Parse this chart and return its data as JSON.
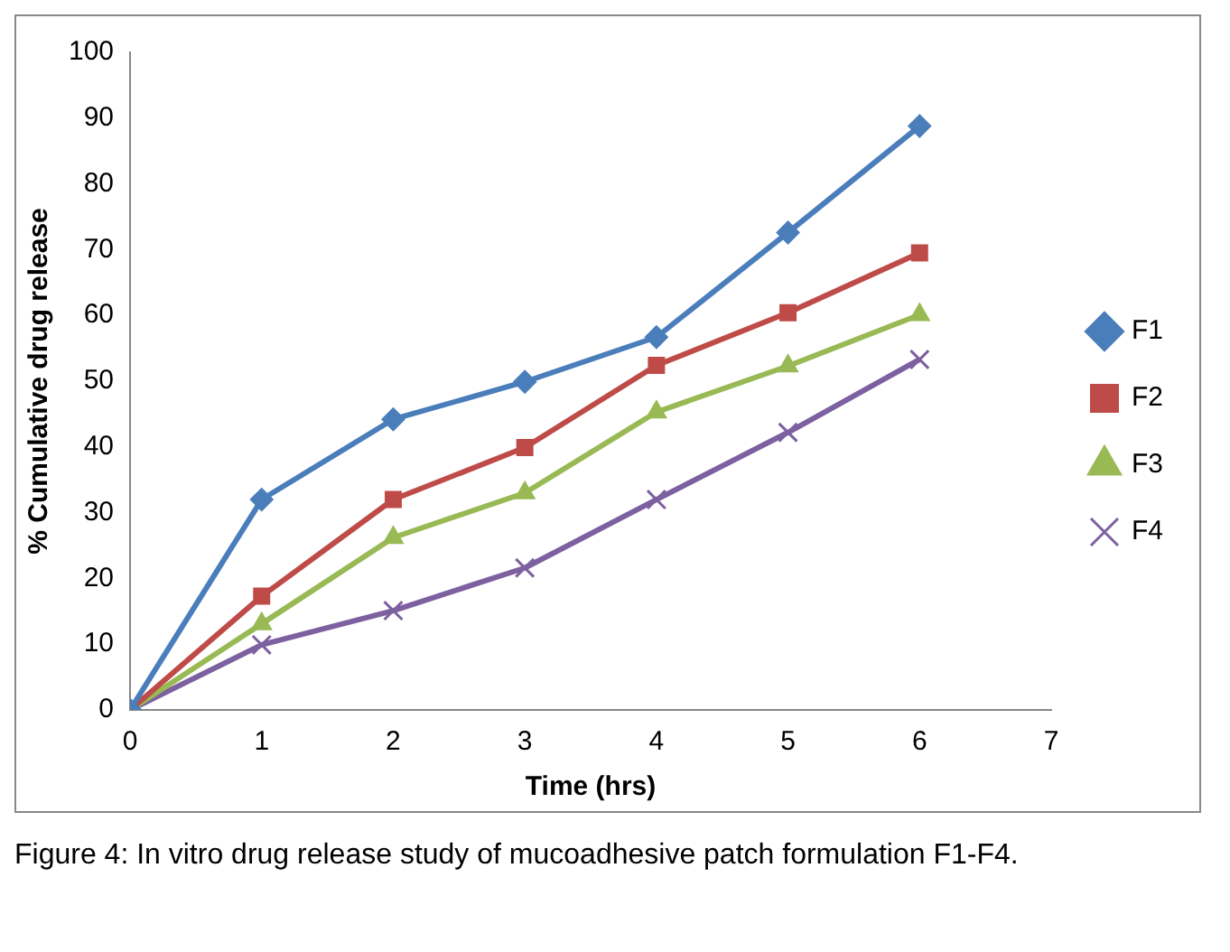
{
  "chart_data": {
    "type": "line",
    "xlabel": "Time (hrs)",
    "ylabel": "% Cumulative drug release",
    "x": [
      0,
      1,
      2,
      3,
      4,
      5,
      6
    ],
    "xlim": [
      0,
      7
    ],
    "xticks": [
      0,
      1,
      2,
      3,
      4,
      5,
      6,
      7
    ],
    "ylim": [
      0,
      100
    ],
    "yticks": [
      0,
      10,
      20,
      30,
      40,
      50,
      60,
      70,
      80,
      90,
      100
    ],
    "grid": false,
    "legend": "right",
    "line_style": "solid",
    "series": [
      {
        "name": "F1",
        "color": "#4a7ebb",
        "marker": "diamond",
        "values": [
          0,
          32,
          44.2,
          49.9,
          56.7,
          72.6,
          88.8
        ]
      },
      {
        "name": "F2",
        "color": "#be4b48",
        "marker": "square",
        "values": [
          0,
          17.3,
          32,
          39.9,
          52.4,
          60.4,
          69.5
        ]
      },
      {
        "name": "F3",
        "color": "#98b954",
        "marker": "triangle",
        "values": [
          0,
          13.1,
          26.2,
          33,
          45.3,
          52.3,
          60.1
        ]
      },
      {
        "name": "F4",
        "color": "#7d60a0",
        "marker": "cross",
        "values": [
          0,
          9.9,
          15.1,
          21.6,
          32,
          42.2,
          53.3
        ]
      }
    ],
    "annotations": [
      "Figure 4: In vitro drug release study of mucoadhesive patch formulation F1-F4."
    ]
  }
}
